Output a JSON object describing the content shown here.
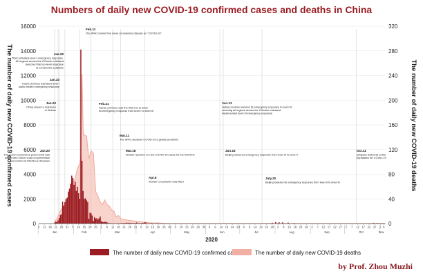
{
  "chart_data": {
    "type": "bar+area",
    "title": "Numbers of daily new COVID-19 confirmed cases and deaths in China",
    "ylabel_left": "The number of daily new COVID-19 confirmed cases",
    "ylabel_right": "The number of daily new COVID-19 deaths",
    "xlabel": "2020",
    "ylim_left": [
      0,
      16000
    ],
    "ylim_right": [
      0,
      320
    ],
    "yticks_left": [
      "0",
      "2000",
      "4000",
      "6000",
      "8000",
      "10000",
      "12000",
      "14000",
      "16000"
    ],
    "yticks_right": [
      "0",
      "40",
      "80",
      "120",
      "160",
      "200",
      "240",
      "280",
      "320"
    ],
    "x_start_day": 6,
    "x_end_day": 310,
    "day_ticks": [
      {
        "day": 6,
        "label": "6"
      },
      {
        "day": 11,
        "label": "11"
      },
      {
        "day": 16,
        "label": "16"
      },
      {
        "day": 21,
        "label": "21"
      },
      {
        "day": 26,
        "label": "26"
      },
      {
        "day": 31,
        "label": "31"
      },
      {
        "day": 36,
        "label": "5"
      },
      {
        "day": 41,
        "label": "10"
      },
      {
        "day": 46,
        "label": "15"
      },
      {
        "day": 51,
        "label": "20"
      },
      {
        "day": 56,
        "label": "25"
      },
      {
        "day": 61,
        "label": "1"
      },
      {
        "day": 66,
        "label": "6"
      },
      {
        "day": 71,
        "label": "11"
      },
      {
        "day": 76,
        "label": "16"
      },
      {
        "day": 81,
        "label": "21"
      },
      {
        "day": 86,
        "label": "26"
      },
      {
        "day": 91,
        "label": "31"
      },
      {
        "day": 96,
        "label": "5"
      },
      {
        "day": 101,
        "label": "10"
      },
      {
        "day": 106,
        "label": "15"
      },
      {
        "day": 111,
        "label": "20"
      },
      {
        "day": 116,
        "label": "25"
      },
      {
        "day": 121,
        "label": "30"
      },
      {
        "day": 126,
        "label": "5"
      },
      {
        "day": 131,
        "label": "10"
      },
      {
        "day": 136,
        "label": "15"
      },
      {
        "day": 141,
        "label": "20"
      },
      {
        "day": 146,
        "label": "25"
      },
      {
        "day": 151,
        "label": "30"
      },
      {
        "day": 156,
        "label": "4"
      },
      {
        "day": 161,
        "label": "9"
      },
      {
        "day": 166,
        "label": "14"
      },
      {
        "day": 171,
        "label": "19"
      },
      {
        "day": 176,
        "label": "24"
      },
      {
        "day": 181,
        "label": "29"
      },
      {
        "day": 186,
        "label": "4"
      },
      {
        "day": 191,
        "label": "9"
      },
      {
        "day": 196,
        "label": "14"
      },
      {
        "day": 201,
        "label": "19"
      },
      {
        "day": 206,
        "label": "24"
      },
      {
        "day": 211,
        "label": "29"
      },
      {
        "day": 216,
        "label": "3"
      },
      {
        "day": 221,
        "label": "8"
      },
      {
        "day": 226,
        "label": "13"
      },
      {
        "day": 231,
        "label": "18"
      },
      {
        "day": 236,
        "label": "23"
      },
      {
        "day": 241,
        "label": "28"
      },
      {
        "day": 246,
        "label": "2"
      },
      {
        "day": 251,
        "label": "7"
      },
      {
        "day": 256,
        "label": "12"
      },
      {
        "day": 261,
        "label": "17"
      },
      {
        "day": 266,
        "label": "22"
      },
      {
        "day": 271,
        "label": "27"
      },
      {
        "day": 276,
        "label": "2"
      },
      {
        "day": 281,
        "label": "7"
      },
      {
        "day": 286,
        "label": "12"
      },
      {
        "day": 291,
        "label": "17"
      },
      {
        "day": 296,
        "label": "22"
      },
      {
        "day": 301,
        "label": "27"
      },
      {
        "day": 306,
        "label": "1"
      },
      {
        "day": 309,
        "label": "6"
      }
    ],
    "months": [
      {
        "label": "Jan",
        "day": 20
      },
      {
        "label": "Feb",
        "day": 46
      },
      {
        "label": "Mar",
        "day": 75
      },
      {
        "label": "Apr",
        "day": 106
      },
      {
        "label": "May",
        "day": 136
      },
      {
        "label": "Jun",
        "day": 167
      },
      {
        "label": "Jul",
        "day": 197
      },
      {
        "label": "Aug",
        "day": 228
      },
      {
        "label": "Sep",
        "day": 259
      },
      {
        "label": "Oct",
        "day": 289
      },
      {
        "label": "Nov",
        "day": 307
      }
    ],
    "series": [
      {
        "name": "The number of daily new COVID-19 confirmed cases",
        "color": "#9b1c22",
        "x": [
          20,
          21,
          22,
          23,
          24,
          25,
          26,
          27,
          28,
          29,
          30,
          31,
          32,
          33,
          34,
          35,
          36,
          37,
          38,
          39,
          40,
          41,
          42,
          43,
          44,
          45,
          46,
          47,
          48,
          49,
          50,
          51,
          52,
          53,
          54,
          55,
          56,
          57,
          58,
          59,
          60,
          61,
          62,
          63,
          64,
          65,
          66,
          67,
          68,
          69,
          70,
          71,
          72,
          73,
          74,
          75,
          76,
          77,
          78,
          79,
          80,
          81,
          82,
          83,
          84,
          85,
          86,
          87,
          88,
          89,
          90,
          91,
          92,
          93,
          94,
          95,
          96,
          97,
          98,
          99,
          100,
          105,
          110,
          115,
          120,
          125,
          130,
          140,
          150,
          160,
          167,
          170,
          175,
          180,
          190,
          200,
          205,
          208,
          211,
          214,
          217,
          220,
          225,
          230,
          240,
          250,
          260,
          270,
          280,
          290,
          295,
          298,
          300,
          303,
          305,
          308,
          310
        ],
        "values": [
          77,
          149,
          131,
          259,
          444,
          688,
          769,
          1771,
          1459,
          1737,
          1982,
          2102,
          2590,
          2829,
          3235,
          3887,
          3694,
          3143,
          3385,
          2652,
          2973,
          2467,
          2015,
          14108,
          5090,
          2641,
          2008,
          2048,
          1886,
          1749,
          391,
          889,
          823,
          648,
          214,
          508,
          406,
          433,
          327,
          427,
          573,
          202,
          125,
          119,
          139,
          143,
          99,
          44,
          40,
          19,
          24,
          15,
          8,
          11,
          20,
          16,
          21,
          13,
          34,
          39,
          41,
          46,
          39,
          78,
          47,
          67,
          55,
          45,
          54,
          31,
          48,
          35,
          86,
          35,
          39,
          30,
          32,
          63,
          46,
          99,
          100,
          46,
          30,
          11,
          22,
          12,
          5,
          6,
          3,
          4,
          0,
          25,
          30,
          20,
          5,
          2,
          10,
          30,
          70,
          120,
          110,
          100,
          80,
          40,
          10,
          5,
          8,
          10,
          20,
          15,
          12,
          20,
          60,
          50,
          40,
          35,
          20
        ]
      },
      {
        "name": "The number of daily new COVID-19 deaths",
        "color": "#f2b0a4",
        "x": [
          20,
          22,
          24,
          26,
          28,
          30,
          32,
          34,
          36,
          38,
          40,
          42,
          43,
          44,
          45,
          46,
          48,
          50,
          52,
          54,
          56,
          58,
          60,
          62,
          64,
          66,
          68,
          70,
          72,
          74,
          76,
          78,
          80,
          85,
          90,
          95,
          100,
          105,
          110,
          120,
          140,
          160,
          200,
          300,
          310
        ],
        "values": [
          3,
          8,
          16,
          24,
          26,
          38,
          43,
          57,
          65,
          73,
          89,
          97,
          108,
          242,
          150,
          143,
          142,
          105,
          118,
          114,
          52,
          44,
          35,
          31,
          38,
          31,
          28,
          22,
          20,
          11,
          13,
          8,
          7,
          5,
          4,
          3,
          2,
          1,
          1,
          0,
          0,
          0,
          0,
          0,
          0
        ]
      }
    ],
    "annotations": [
      {
        "date": "Jan.20",
        "day": 20,
        "text": [
          "The novel coronavirus pneumonia was",
          "added into China' s law on prevention",
          "and control of infectious diseases"
        ]
      },
      {
        "date": "Jan.23",
        "day": 23,
        "text": [
          "China issued a lockdown",
          "in Wuhan"
        ]
      },
      {
        "date": "Jan.24",
        "day": 24,
        "text": [
          "Hubei province activated level I",
          "public health emergency response"
        ]
      },
      {
        "date": "Jan.29",
        "day": 29,
        "text": [
          "Tibet activated level I emergency response.",
          "All regions across the Chinese mainland",
          "launched the top-level response",
          "to contain the epidemic"
        ]
      },
      {
        "date": "Feb.11",
        "day": 42,
        "text": [
          "The WHO named the novel coronavirus disease as \"COVID-19\""
        ]
      },
      {
        "date": "Feb.21",
        "day": 52,
        "text": [
          "Gansu province was the first one to lower",
          "its emergency response from level I to level III"
        ]
      },
      {
        "date": "Mar.11",
        "day": 71,
        "text": [
          "The WHO declared COVID-19 a global pandemic"
        ]
      },
      {
        "date": "Mar.18",
        "day": 78,
        "text": [
          "Wuhan reported no new COVID-19 cases for the first time"
        ]
      },
      {
        "date": "Apr.8",
        "day": 99,
        "text": [
          "Wuhan' s lockdown was lifted"
        ]
      },
      {
        "date": "Jun.13",
        "day": 165,
        "text": [
          "Hubei province lowered its emergency response to level III,",
          "meaning all regions across the Chinese mainland",
          "implemented level III emergency response"
        ]
      },
      {
        "date": "Jun.16",
        "day": 168,
        "text": [
          "Beijing raised its emergency response from level III to level II"
        ]
      },
      {
        "date": "July.20",
        "day": 202,
        "text": [
          "Beijing lowered its emergency response from level II to level III"
        ]
      },
      {
        "date": "Oct.11",
        "day": 285,
        "text": [
          "Qingdao tested its entire",
          "population for COVID-19"
        ]
      }
    ],
    "grid": true,
    "legend": "bottom"
  },
  "credit": "by Prof. Zhou Muzhi"
}
